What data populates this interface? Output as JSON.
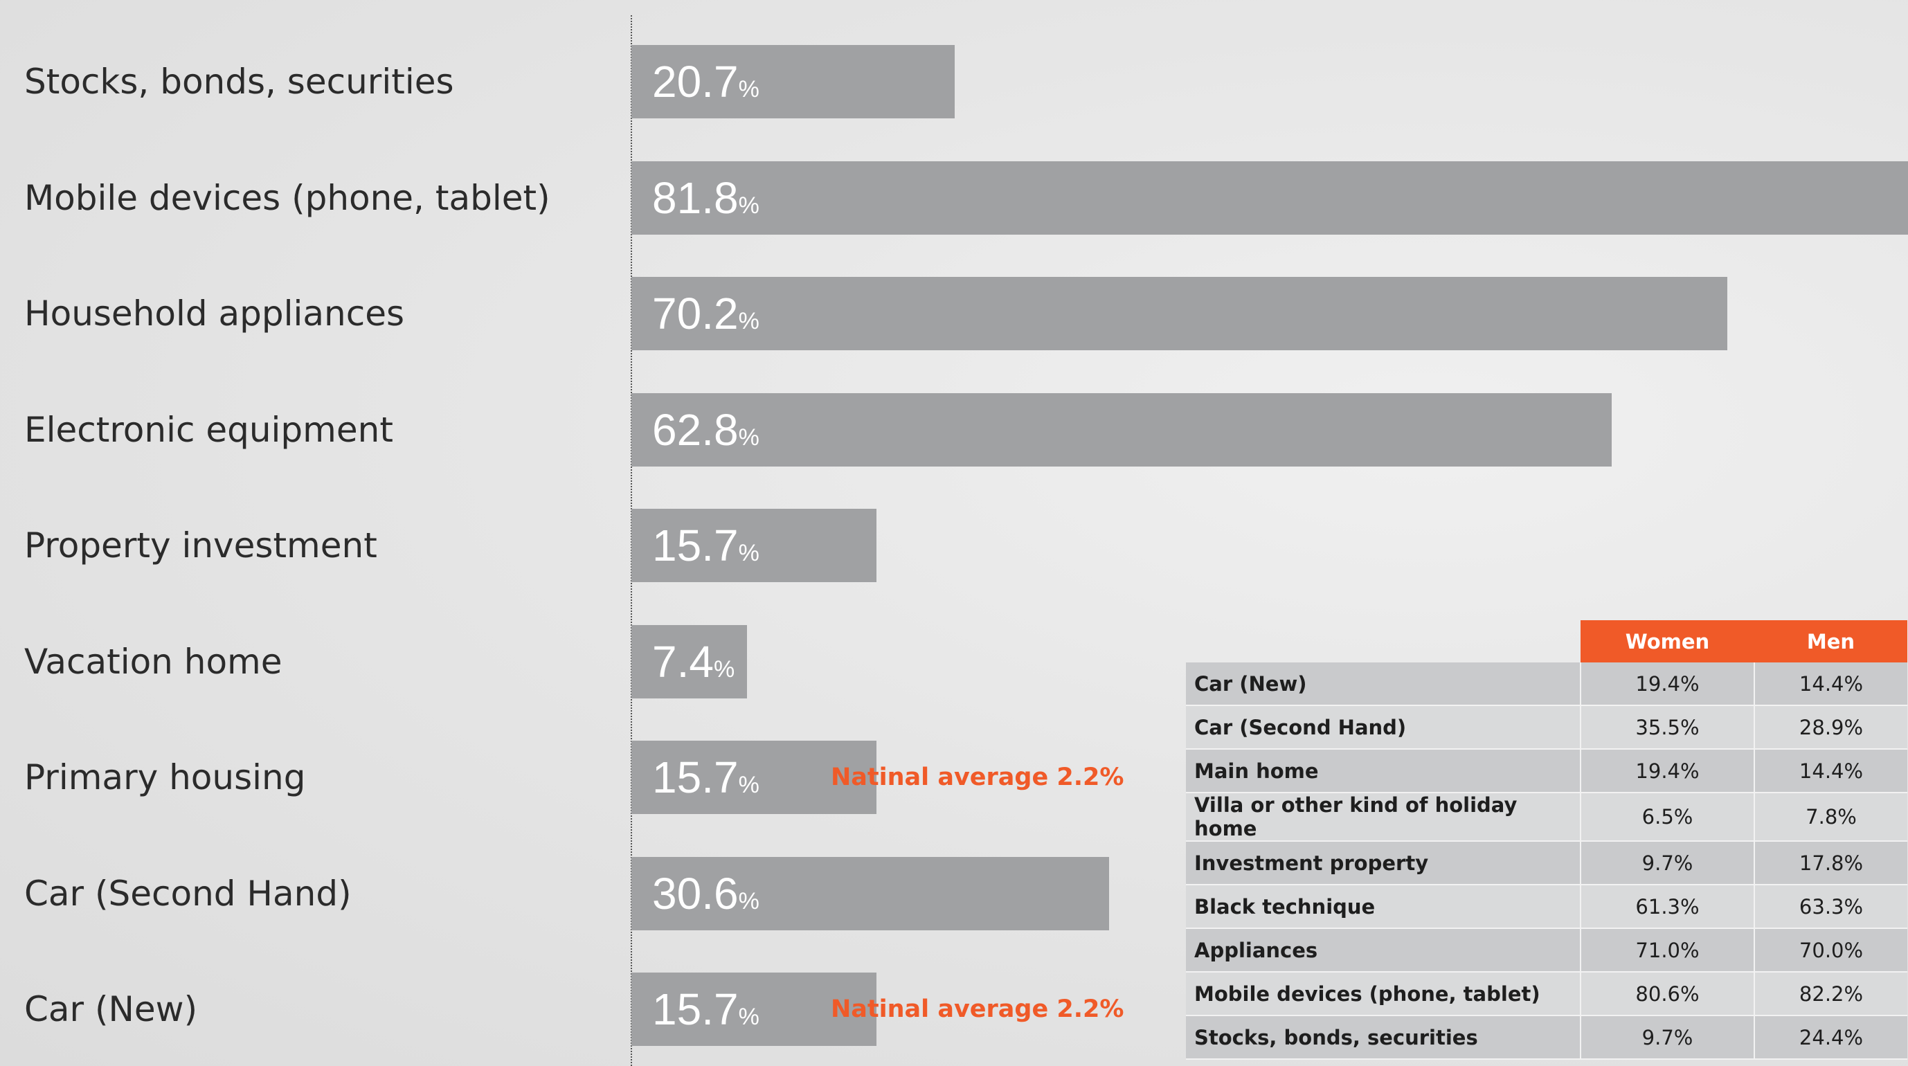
{
  "chart_data": [
    {
      "type": "bar",
      "orientation": "horizontal",
      "categories": [
        "Stocks, bonds, securities",
        "Mobile devices (phone, tablet)",
        "Household appliances",
        "Electronic equipment",
        "Property investment",
        "Vacation home",
        "Primary housing",
        "Car (Second Hand)",
        "Car (New)"
      ],
      "values": [
        20.7,
        81.8,
        70.2,
        62.8,
        15.7,
        7.4,
        15.7,
        30.6,
        15.7
      ],
      "value_labels": [
        "20.7",
        "81.8",
        "70.2",
        "62.8",
        "15.7",
        "7.4",
        "15.7",
        "30.6",
        "15.7"
      ],
      "unit": "%",
      "xlim": [
        0,
        81.8
      ],
      "grid": false,
      "bar_color": "#a0a1a3",
      "annotations": [
        {
          "category": "Primary housing",
          "text": "Natinal average 2.2%"
        },
        {
          "category": "Car (New)",
          "text": "Natinal average 2.2%"
        }
      ],
      "annotation_color": "#f05a28"
    },
    {
      "type": "table",
      "columns": [
        "",
        "Women",
        "Men"
      ],
      "header_color": "#f05a28",
      "rows": [
        {
          "label": "Car (New)",
          "women": "19.4%",
          "men": "14.4%"
        },
        {
          "label": "Car (Second Hand)",
          "women": "35.5%",
          "men": "28.9%"
        },
        {
          "label": "Main home",
          "women": "19.4%",
          "men": "14.4%"
        },
        {
          "label": "Villa or other kind of holiday home",
          "women": "6.5%",
          "men": "7.8%"
        },
        {
          "label": "Investment property",
          "women": "9.7%",
          "men": "17.8%"
        },
        {
          "label": "Black technique",
          "women": "61.3%",
          "men": "63.3%"
        },
        {
          "label": "Appliances",
          "women": "71.0%",
          "men": "70.0%"
        },
        {
          "label": "Mobile devices (phone, tablet)",
          "women": "80.6%",
          "men": "82.2%"
        },
        {
          "label": "Stocks, bonds, securities",
          "women": "9.7%",
          "men": "24.4%"
        }
      ]
    }
  ]
}
